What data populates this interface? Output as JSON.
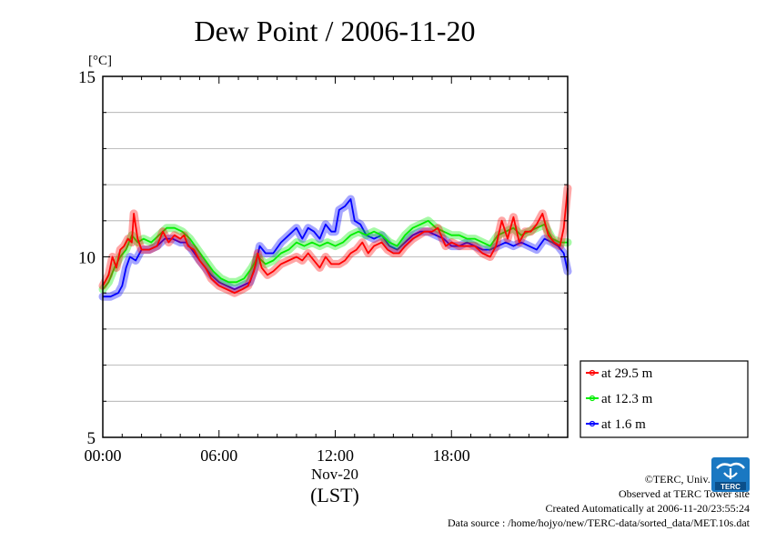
{
  "chart_data": {
    "type": "line",
    "title": "Dew Point / 2006-11-20",
    "ylabel": "[°C]",
    "ylim": [
      5,
      15
    ],
    "y_ticks": [
      5,
      10,
      15
    ],
    "xlim_hours": [
      0,
      24
    ],
    "x_tick_labels": [
      "00:00",
      "06:00",
      "12:00",
      "18:00"
    ],
    "x_tick_hours": [
      0,
      6,
      12,
      18
    ],
    "xlabel_date": "Nov-20",
    "xlabel_unit": "(LST)",
    "grid": true,
    "legend_position": "bottom-right-outside",
    "series": [
      {
        "name": "at 29.5 m",
        "color": "#ff0000",
        "points": [
          [
            0,
            9.2
          ],
          [
            0.3,
            9.5
          ],
          [
            0.5,
            10.0
          ],
          [
            0.7,
            9.7
          ],
          [
            0.9,
            10.2
          ],
          [
            1.1,
            10.3
          ],
          [
            1.3,
            10.5
          ],
          [
            1.5,
            10.4
          ],
          [
            1.6,
            11.2
          ],
          [
            1.8,
            10.5
          ],
          [
            2.0,
            10.2
          ],
          [
            2.4,
            10.2
          ],
          [
            2.8,
            10.3
          ],
          [
            3.1,
            10.7
          ],
          [
            3.4,
            10.4
          ],
          [
            3.7,
            10.6
          ],
          [
            4.0,
            10.5
          ],
          [
            4.2,
            10.6
          ],
          [
            4.4,
            10.3
          ],
          [
            4.7,
            10.2
          ],
          [
            5.0,
            9.9
          ],
          [
            5.3,
            9.7
          ],
          [
            5.6,
            9.4
          ],
          [
            6.0,
            9.2
          ],
          [
            6.4,
            9.1
          ],
          [
            6.8,
            9.0
          ],
          [
            7.2,
            9.1
          ],
          [
            7.5,
            9.2
          ],
          [
            7.8,
            9.6
          ],
          [
            8.0,
            10.1
          ],
          [
            8.2,
            9.7
          ],
          [
            8.5,
            9.5
          ],
          [
            8.8,
            9.6
          ],
          [
            9.2,
            9.8
          ],
          [
            9.6,
            9.9
          ],
          [
            10.0,
            10.0
          ],
          [
            10.3,
            9.9
          ],
          [
            10.6,
            10.1
          ],
          [
            10.9,
            9.9
          ],
          [
            11.2,
            9.7
          ],
          [
            11.5,
            10.0
          ],
          [
            11.8,
            9.8
          ],
          [
            12.2,
            9.8
          ],
          [
            12.5,
            9.9
          ],
          [
            12.8,
            10.1
          ],
          [
            13.1,
            10.2
          ],
          [
            13.4,
            10.4
          ],
          [
            13.7,
            10.1
          ],
          [
            14.0,
            10.3
          ],
          [
            14.4,
            10.4
          ],
          [
            14.7,
            10.2
          ],
          [
            15.0,
            10.1
          ],
          [
            15.3,
            10.1
          ],
          [
            15.6,
            10.3
          ],
          [
            16.0,
            10.5
          ],
          [
            16.3,
            10.6
          ],
          [
            16.6,
            10.7
          ],
          [
            17.0,
            10.7
          ],
          [
            17.3,
            10.8
          ],
          [
            17.7,
            10.3
          ],
          [
            18.0,
            10.4
          ],
          [
            18.4,
            10.3
          ],
          [
            18.8,
            10.3
          ],
          [
            19.2,
            10.3
          ],
          [
            19.6,
            10.1
          ],
          [
            20.0,
            10.0
          ],
          [
            20.3,
            10.3
          ],
          [
            20.6,
            11.0
          ],
          [
            20.9,
            10.5
          ],
          [
            21.2,
            11.1
          ],
          [
            21.5,
            10.4
          ],
          [
            21.8,
            10.7
          ],
          [
            22.1,
            10.7
          ],
          [
            22.4,
            10.9
          ],
          [
            22.7,
            11.2
          ],
          [
            23.0,
            10.6
          ],
          [
            23.3,
            10.4
          ],
          [
            23.6,
            10.3
          ],
          [
            23.8,
            10.8
          ],
          [
            24.0,
            11.9
          ]
        ]
      },
      {
        "name": "at 12.3 m",
        "color": "#00ee00",
        "points": [
          [
            0,
            9.1
          ],
          [
            0.3,
            9.3
          ],
          [
            0.6,
            9.7
          ],
          [
            0.9,
            10.0
          ],
          [
            1.2,
            10.2
          ],
          [
            1.5,
            10.6
          ],
          [
            1.8,
            10.4
          ],
          [
            2.1,
            10.5
          ],
          [
            2.5,
            10.4
          ],
          [
            2.9,
            10.6
          ],
          [
            3.3,
            10.8
          ],
          [
            3.7,
            10.8
          ],
          [
            4.1,
            10.7
          ],
          [
            4.5,
            10.5
          ],
          [
            4.9,
            10.2
          ],
          [
            5.3,
            9.9
          ],
          [
            5.7,
            9.6
          ],
          [
            6.1,
            9.4
          ],
          [
            6.5,
            9.3
          ],
          [
            6.9,
            9.3
          ],
          [
            7.3,
            9.4
          ],
          [
            7.7,
            9.7
          ],
          [
            8.0,
            10.0
          ],
          [
            8.4,
            9.8
          ],
          [
            8.8,
            9.9
          ],
          [
            9.2,
            10.1
          ],
          [
            9.6,
            10.2
          ],
          [
            10.0,
            10.4
          ],
          [
            10.4,
            10.3
          ],
          [
            10.8,
            10.4
          ],
          [
            11.2,
            10.3
          ],
          [
            11.6,
            10.4
          ],
          [
            12.0,
            10.3
          ],
          [
            12.4,
            10.4
          ],
          [
            12.8,
            10.6
          ],
          [
            13.2,
            10.7
          ],
          [
            13.6,
            10.6
          ],
          [
            14.0,
            10.7
          ],
          [
            14.4,
            10.6
          ],
          [
            14.8,
            10.4
          ],
          [
            15.2,
            10.3
          ],
          [
            15.6,
            10.6
          ],
          [
            16.0,
            10.8
          ],
          [
            16.4,
            10.9
          ],
          [
            16.8,
            11.0
          ],
          [
            17.2,
            10.8
          ],
          [
            17.6,
            10.7
          ],
          [
            18.0,
            10.6
          ],
          [
            18.4,
            10.6
          ],
          [
            18.8,
            10.5
          ],
          [
            19.2,
            10.5
          ],
          [
            19.6,
            10.4
          ],
          [
            20.0,
            10.3
          ],
          [
            20.4,
            10.6
          ],
          [
            20.8,
            10.7
          ],
          [
            21.2,
            10.8
          ],
          [
            21.6,
            10.6
          ],
          [
            22.0,
            10.7
          ],
          [
            22.4,
            10.8
          ],
          [
            22.8,
            10.9
          ],
          [
            23.2,
            10.5
          ],
          [
            23.6,
            10.4
          ],
          [
            24.0,
            10.4
          ]
        ]
      },
      {
        "name": "at 1.6 m",
        "color": "#0000ff",
        "points": [
          [
            0,
            8.9
          ],
          [
            0.4,
            8.9
          ],
          [
            0.8,
            9.0
          ],
          [
            1.0,
            9.2
          ],
          [
            1.2,
            9.7
          ],
          [
            1.4,
            10.0
          ],
          [
            1.7,
            9.9
          ],
          [
            2.0,
            10.2
          ],
          [
            2.4,
            10.2
          ],
          [
            2.8,
            10.3
          ],
          [
            3.2,
            10.5
          ],
          [
            3.6,
            10.5
          ],
          [
            4.0,
            10.4
          ],
          [
            4.3,
            10.4
          ],
          [
            4.6,
            10.2
          ],
          [
            5.0,
            9.9
          ],
          [
            5.3,
            9.7
          ],
          [
            5.6,
            9.5
          ],
          [
            6.0,
            9.3
          ],
          [
            6.4,
            9.2
          ],
          [
            6.8,
            9.1
          ],
          [
            7.2,
            9.2
          ],
          [
            7.6,
            9.3
          ],
          [
            7.9,
            9.8
          ],
          [
            8.1,
            10.3
          ],
          [
            8.4,
            10.1
          ],
          [
            8.8,
            10.1
          ],
          [
            9.2,
            10.4
          ],
          [
            9.6,
            10.6
          ],
          [
            10.0,
            10.8
          ],
          [
            10.3,
            10.5
          ],
          [
            10.6,
            10.8
          ],
          [
            10.9,
            10.7
          ],
          [
            11.2,
            10.5
          ],
          [
            11.5,
            10.9
          ],
          [
            11.8,
            10.7
          ],
          [
            12.0,
            10.7
          ],
          [
            12.2,
            11.3
          ],
          [
            12.5,
            11.4
          ],
          [
            12.8,
            11.6
          ],
          [
            13.0,
            11.0
          ],
          [
            13.3,
            10.9
          ],
          [
            13.6,
            10.6
          ],
          [
            14.0,
            10.5
          ],
          [
            14.4,
            10.6
          ],
          [
            14.8,
            10.3
          ],
          [
            15.2,
            10.2
          ],
          [
            15.6,
            10.4
          ],
          [
            16.0,
            10.6
          ],
          [
            16.4,
            10.7
          ],
          [
            16.8,
            10.7
          ],
          [
            17.2,
            10.6
          ],
          [
            17.6,
            10.5
          ],
          [
            18.0,
            10.3
          ],
          [
            18.4,
            10.3
          ],
          [
            18.8,
            10.4
          ],
          [
            19.2,
            10.3
          ],
          [
            19.6,
            10.2
          ],
          [
            20.0,
            10.2
          ],
          [
            20.4,
            10.3
          ],
          [
            20.8,
            10.4
          ],
          [
            21.2,
            10.3
          ],
          [
            21.6,
            10.4
          ],
          [
            22.0,
            10.3
          ],
          [
            22.4,
            10.2
          ],
          [
            22.8,
            10.5
          ],
          [
            23.2,
            10.4
          ],
          [
            23.5,
            10.3
          ],
          [
            23.8,
            10.1
          ],
          [
            24.0,
            9.6
          ]
        ]
      }
    ]
  },
  "footer": {
    "copyright": "©TERC, Univ. Tsukuba",
    "observed": "Observed at TERC Tower site",
    "created": "Created Automatically at 2006-11-20/23:55:24",
    "source": "Data source : /home/hojyo/new/TERC-data/sorted_data/MET.10s.dat"
  },
  "logo": {
    "icon": "terc-logo-icon",
    "text": "TERC",
    "color": "#1a78c2"
  }
}
